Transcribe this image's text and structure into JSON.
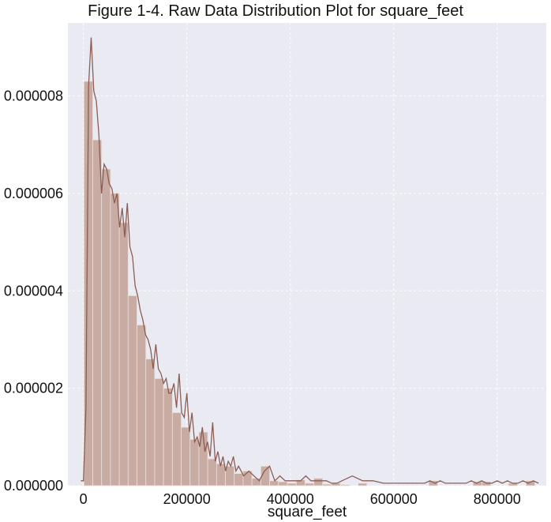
{
  "chart_data": {
    "type": "bar",
    "title": "Figure 1-4.  Raw Data Distribution Plot for square_feet",
    "xlabel": "square_feet",
    "ylabel": "",
    "xlim": [
      -30000,
      895000
    ],
    "ylim": [
      0,
      9.5e-06
    ],
    "xticks": [
      0,
      200000,
      400000,
      600000,
      800000
    ],
    "xtick_labels": [
      "0",
      "200000",
      "400000",
      "600000",
      "800000"
    ],
    "yticks": [
      0,
      2e-06,
      4e-06,
      6e-06,
      8e-06
    ],
    "ytick_labels": [
      "0.000000",
      "0.000002",
      "0.000004",
      "0.000006",
      "0.000008"
    ],
    "grid": true,
    "background": "#eaeaf2",
    "bar_color": "#c4a49a",
    "line_color": "#8b5e55",
    "histogram": {
      "bin_width": 17100,
      "bin_starts": [
        1000,
        18100,
        35200,
        52300,
        69400,
        86500,
        103600,
        120700,
        137800,
        154900,
        172000,
        189100,
        206200,
        223300,
        240400,
        257500,
        274600,
        291700,
        308800,
        325900,
        343000,
        360100,
        377200,
        394300,
        411400,
        428500,
        445600,
        462700,
        479800,
        496900,
        514000,
        531100,
        548200,
        565300,
        582400,
        599500,
        616600,
        633700,
        650800,
        667900,
        685000,
        702100,
        719200,
        736300,
        753400,
        770500,
        787600,
        804700,
        821800,
        838900,
        856000,
        873100
      ],
      "density": [
        8.3e-06,
        7.1e-06,
        6.5e-06,
        6e-06,
        5.4e-06,
        3.9e-06,
        3.3e-06,
        2.6e-06,
        2.2e-06,
        2e-06,
        1.5e-06,
        1.2e-06,
        9.5e-07,
        1.1e-06,
        5.5e-07,
        4.5e-07,
        4e-07,
        2.5e-07,
        3e-07,
        1.5e-07,
        4e-07,
        1e-07,
        8e-08,
        5e-08,
        1.2e-07,
        5e-08,
        1.5e-07,
        3e-08,
        5e-08,
        2e-08,
        0.0,
        5e-08,
        0.0,
        0.0,
        0.0,
        0.0,
        0.0,
        0.0,
        0.0,
        1e-07,
        0.0,
        0.0,
        0.0,
        0.0,
        8e-08,
        8e-08,
        0.0,
        0.0,
        5e-08,
        0.0,
        1e-07,
        0.0
      ]
    },
    "kde": {
      "x": [
        -5000,
        0,
        5000,
        10000,
        15000,
        20000,
        25000,
        30000,
        35000,
        40000,
        45000,
        50000,
        55000,
        60000,
        65000,
        70000,
        75000,
        80000,
        85000,
        90000,
        95000,
        100000,
        105000,
        110000,
        115000,
        120000,
        125000,
        130000,
        135000,
        140000,
        145000,
        150000,
        155000,
        160000,
        165000,
        170000,
        175000,
        180000,
        185000,
        190000,
        195000,
        200000,
        205000,
        210000,
        215000,
        220000,
        225000,
        230000,
        235000,
        240000,
        245000,
        250000,
        255000,
        260000,
        265000,
        270000,
        275000,
        280000,
        285000,
        290000,
        295000,
        300000,
        310000,
        320000,
        330000,
        340000,
        350000,
        360000,
        370000,
        380000,
        390000,
        400000,
        410000,
        420000,
        430000,
        440000,
        450000,
        460000,
        470000,
        480000,
        490000,
        500000,
        520000,
        540000,
        560000,
        580000,
        600000,
        620000,
        640000,
        660000,
        670000,
        680000,
        690000,
        700000,
        720000,
        740000,
        750000,
        760000,
        770000,
        780000,
        790000,
        800000,
        810000,
        820000,
        830000,
        840000,
        850000,
        860000,
        870000,
        880000
      ],
      "y": [
        1e-07,
        1e-07,
        1.6e-06,
        8.2e-06,
        9.2e-06,
        8.1e-06,
        7.9e-06,
        7.2e-06,
        6e-06,
        6.6e-06,
        6.5e-06,
        6.2e-06,
        6.1e-06,
        5.8e-06,
        6e-06,
        5.3e-06,
        5.7e-06,
        5.1e-06,
        5.8e-06,
        4.9e-06,
        4.7e-06,
        4.1e-06,
        3.9e-06,
        3.6e-06,
        3.4e-06,
        3.1e-06,
        3e-06,
        2.8e-06,
        2.4e-06,
        2.9e-06,
        2.4e-06,
        2.3e-06,
        2.1e-06,
        2.2e-06,
        1.9e-06,
        1.9e-06,
        2.1e-06,
        1.6e-06,
        2.3e-06,
        1.5e-06,
        1.4e-06,
        1.9e-06,
        1.1e-06,
        1.5e-06,
        9e-07,
        1e-06,
        8e-07,
        1.2e-06,
        7e-07,
        9e-07,
        6e-07,
        1.3e-06,
        5e-07,
        7e-07,
        4e-07,
        6e-07,
        3e-07,
        5e-07,
        4e-07,
        6e-07,
        3e-07,
        4e-07,
        2e-07,
        3e-07,
        2e-07,
        1e-07,
        3e-07,
        4e-07,
        1e-07,
        2e-07,
        1e-07,
        1e-07,
        1e-07,
        1e-07,
        2e-07,
        1e-07,
        1e-07,
        1e-07,
        1e-07,
        5e-08,
        5e-08,
        1e-07,
        2e-07,
        1e-07,
        1e-07,
        5e-08,
        5e-08,
        5e-08,
        5e-08,
        5e-08,
        1e-07,
        5e-08,
        1e-07,
        5e-08,
        5e-08,
        5e-08,
        1e-07,
        5e-08,
        1e-07,
        5e-08,
        5e-08,
        1e-07,
        5e-08,
        1e-07,
        5e-08,
        5e-08,
        1e-07,
        5e-08,
        1e-07,
        5e-08
      ]
    }
  }
}
